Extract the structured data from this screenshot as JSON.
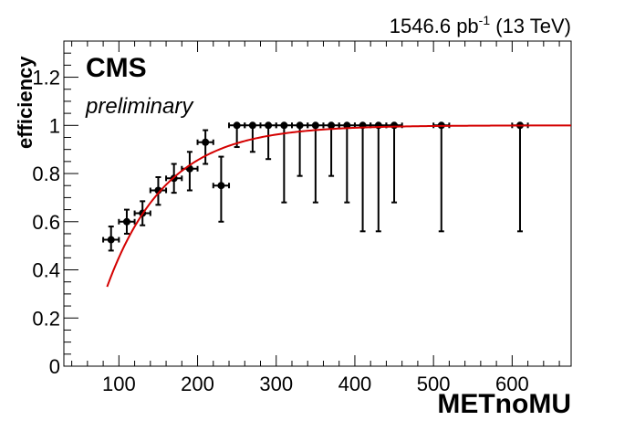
{
  "chart_data": {
    "type": "scatter",
    "header": {
      "experiment": "CMS",
      "status": "preliminary",
      "lumi_value": "1546.6 pb",
      "lumi_exponent": "-1",
      "energy": "(13 TeV)"
    },
    "xlabel": "METnoMU",
    "ylabel": "efficiency",
    "xlim": [
      30,
      675
    ],
    "ylim": [
      0,
      1.35
    ],
    "x_ticks": [
      100,
      200,
      300,
      400,
      500,
      600
    ],
    "x_tick_labels": [
      "100",
      "200",
      "300",
      "400",
      "500",
      "600"
    ],
    "y_ticks": [
      0,
      0.2,
      0.4,
      0.6,
      0.8,
      1,
      1.2
    ],
    "y_tick_labels": [
      "0",
      "0.2",
      "0.4",
      "0.6",
      "0.8",
      "1",
      "1.2"
    ],
    "grid": false,
    "series": [
      {
        "type": "scatter_errorbars",
        "marker_color": "#000000",
        "points": [
          {
            "x": 90,
            "y": 0.525,
            "xerr": 10,
            "yerr_low": 0.045,
            "yerr_high": 0.055
          },
          {
            "x": 110,
            "y": 0.6,
            "xerr": 10,
            "yerr_low": 0.05,
            "yerr_high": 0.05
          },
          {
            "x": 130,
            "y": 0.635,
            "xerr": 10,
            "yerr_low": 0.05,
            "yerr_high": 0.05
          },
          {
            "x": 150,
            "y": 0.73,
            "xerr": 10,
            "yerr_low": 0.06,
            "yerr_high": 0.055
          },
          {
            "x": 170,
            "y": 0.78,
            "xerr": 10,
            "yerr_low": 0.06,
            "yerr_high": 0.06
          },
          {
            "x": 190,
            "y": 0.82,
            "xerr": 10,
            "yerr_low": 0.09,
            "yerr_high": 0.07
          },
          {
            "x": 210,
            "y": 0.93,
            "xerr": 10,
            "yerr_low": 0.09,
            "yerr_high": 0.05
          },
          {
            "x": 230,
            "y": 0.75,
            "xerr": 10,
            "yerr_low": 0.15,
            "yerr_high": 0.12
          },
          {
            "x": 250,
            "y": 1.0,
            "xerr": 10,
            "yerr_low": 0.09,
            "yerr_high": 0
          },
          {
            "x": 270,
            "y": 1.0,
            "xerr": 10,
            "yerr_low": 0.11,
            "yerr_high": 0
          },
          {
            "x": 290,
            "y": 1.0,
            "xerr": 10,
            "yerr_low": 0.14,
            "yerr_high": 0
          },
          {
            "x": 310,
            "y": 1.0,
            "xerr": 10,
            "yerr_low": 0.32,
            "yerr_high": 0
          },
          {
            "x": 330,
            "y": 1.0,
            "xerr": 10,
            "yerr_low": 0.21,
            "yerr_high": 0
          },
          {
            "x": 350,
            "y": 1.0,
            "xerr": 10,
            "yerr_low": 0.32,
            "yerr_high": 0
          },
          {
            "x": 370,
            "y": 1.0,
            "xerr": 10,
            "yerr_low": 0.21,
            "yerr_high": 0
          },
          {
            "x": 390,
            "y": 1.0,
            "xerr": 10,
            "yerr_low": 0.32,
            "yerr_high": 0
          },
          {
            "x": 410,
            "y": 1.0,
            "xerr": 10,
            "yerr_low": 0.44,
            "yerr_high": 0
          },
          {
            "x": 430,
            "y": 1.0,
            "xerr": 10,
            "yerr_low": 0.44,
            "yerr_high": 0
          },
          {
            "x": 450,
            "y": 1.0,
            "xerr": 10,
            "yerr_low": 0.32,
            "yerr_high": 0
          },
          {
            "x": 510,
            "y": 1.0,
            "xerr": 10,
            "yerr_low": 0.44,
            "yerr_high": 0
          },
          {
            "x": 610,
            "y": 1.0,
            "xerr": 10,
            "yerr_low": 0.44,
            "yerr_high": 0
          }
        ]
      },
      {
        "type": "fit_curve",
        "color": "#d40000",
        "function": "1 - exp(-(x - 55)/75)",
        "x_range": [
          85,
          675
        ]
      }
    ]
  }
}
